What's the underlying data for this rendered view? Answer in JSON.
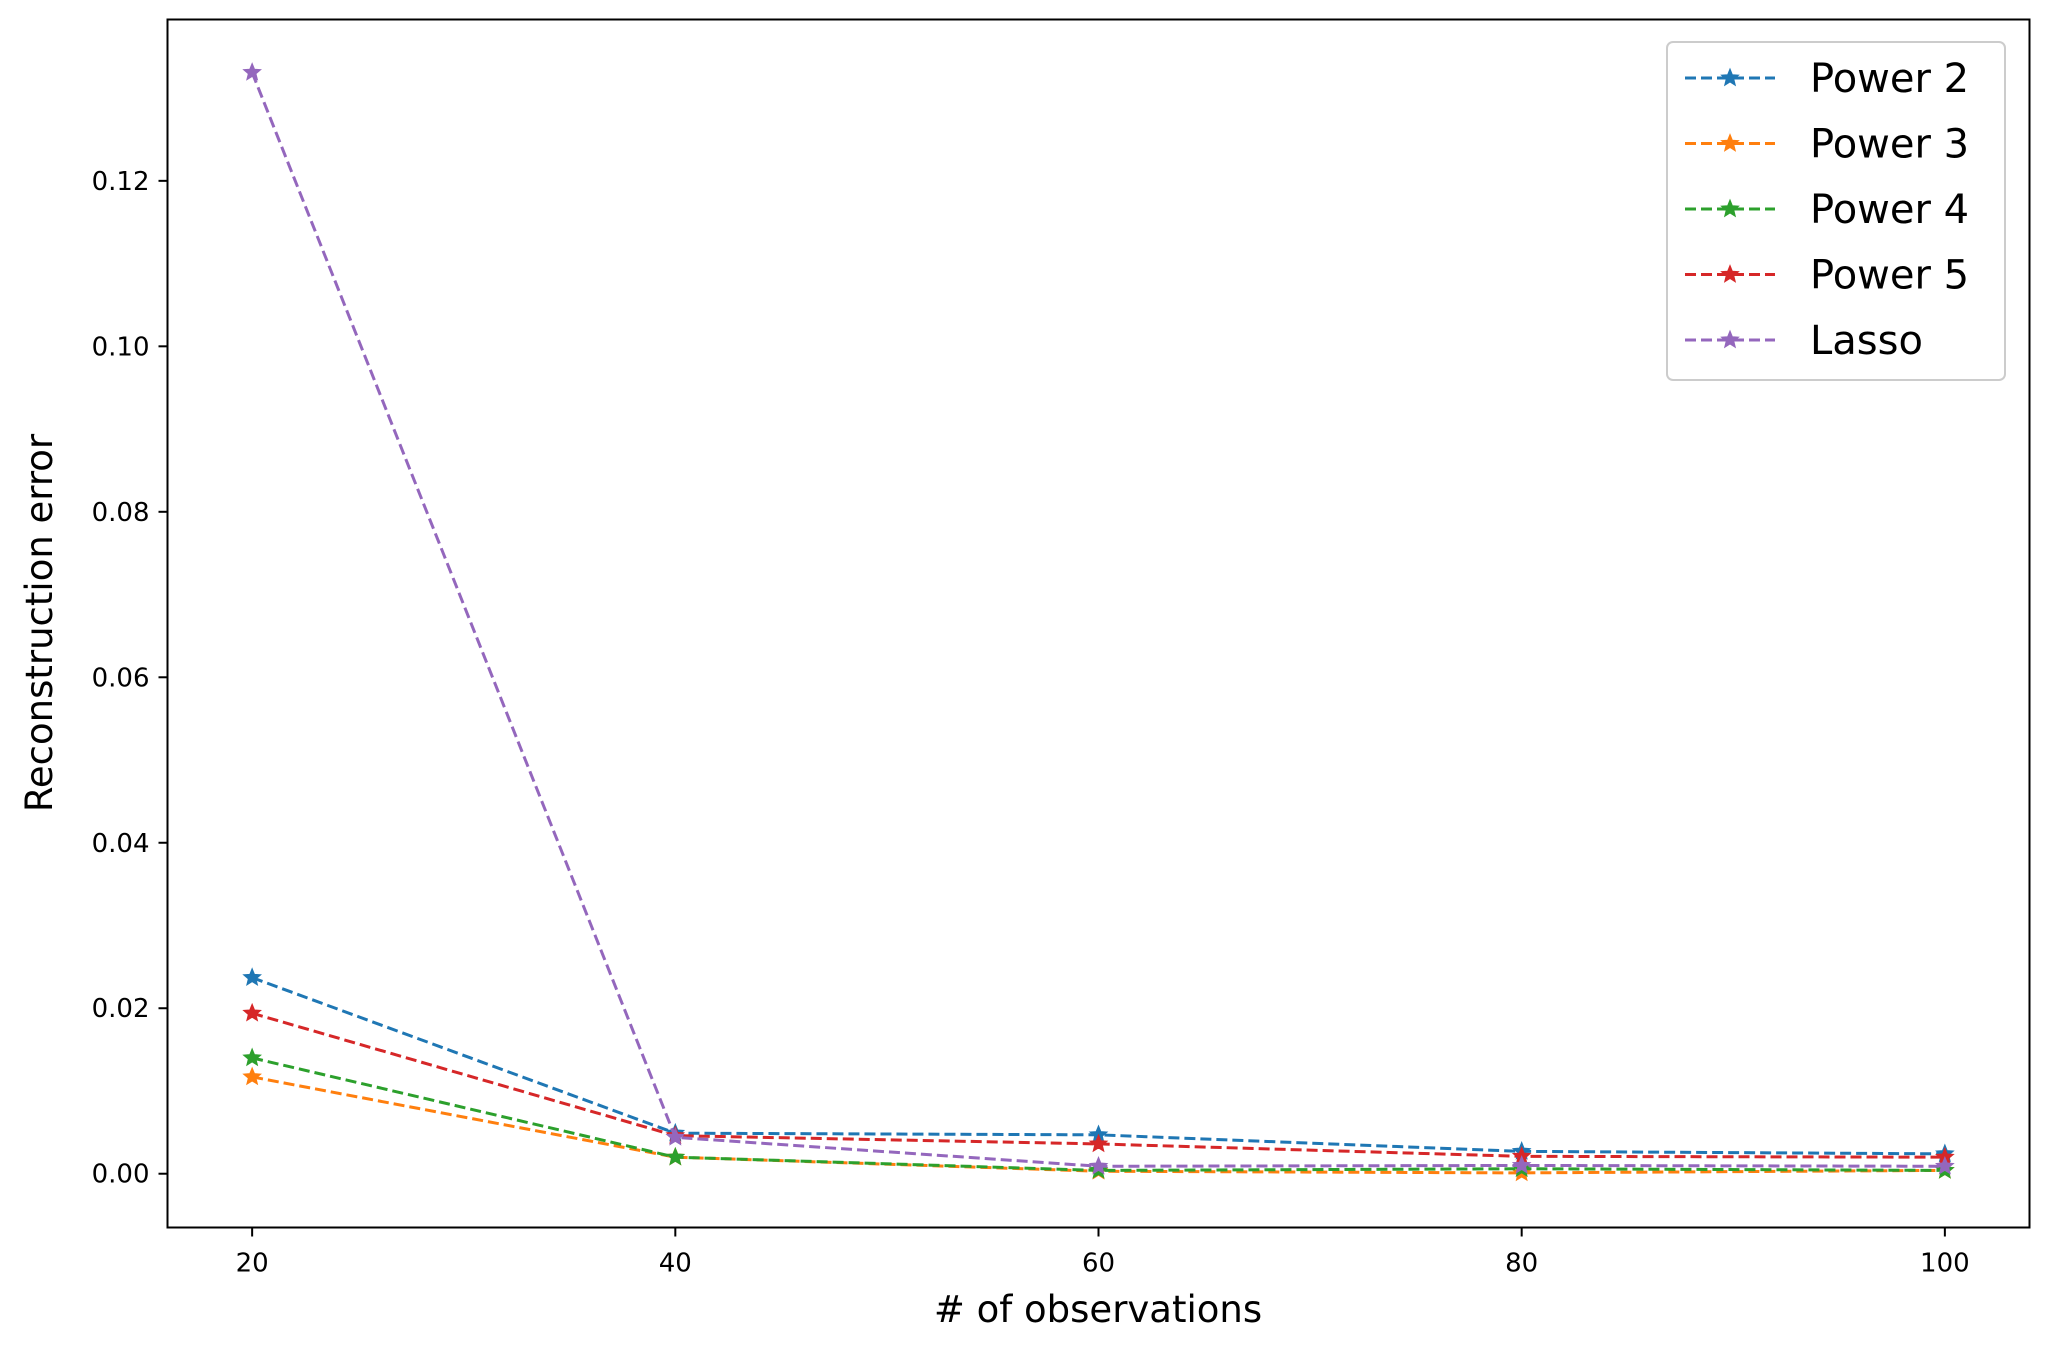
{
  "chart_data": {
    "type": "line",
    "title": "",
    "xlabel": "# of observations",
    "ylabel": "Reconstruction error",
    "x": [
      20,
      40,
      60,
      80,
      100
    ],
    "xticks": [
      "20",
      "40",
      "60",
      "80",
      "100"
    ],
    "yticks": [
      "0.00",
      "0.02",
      "0.04",
      "0.06",
      "0.08",
      "0.10",
      "0.12"
    ],
    "xlim": [
      16,
      104
    ],
    "ylim": [
      -0.0065,
      0.1395
    ],
    "grid": false,
    "legend_position": "top-right",
    "line_style": "dashed",
    "marker": "star",
    "series": [
      {
        "name": "Power 2",
        "color": "#1f77b4",
        "values": [
          0.0237,
          0.0049,
          0.0047,
          0.0027,
          0.0024
        ]
      },
      {
        "name": "Power 3",
        "color": "#ff7f0e",
        "values": [
          0.0117,
          0.002,
          0.0003,
          0.0001,
          0.0004
        ]
      },
      {
        "name": "Power 4",
        "color": "#2ca02c",
        "values": [
          0.014,
          0.002,
          0.0004,
          0.0006,
          0.0004
        ]
      },
      {
        "name": "Power 5",
        "color": "#d62728",
        "values": [
          0.0194,
          0.0046,
          0.0036,
          0.0021,
          0.002
        ]
      },
      {
        "name": "Lasso",
        "color": "#9467bd",
        "values": [
          0.1331,
          0.0044,
          0.0009,
          0.001,
          0.0009
        ]
      }
    ]
  }
}
